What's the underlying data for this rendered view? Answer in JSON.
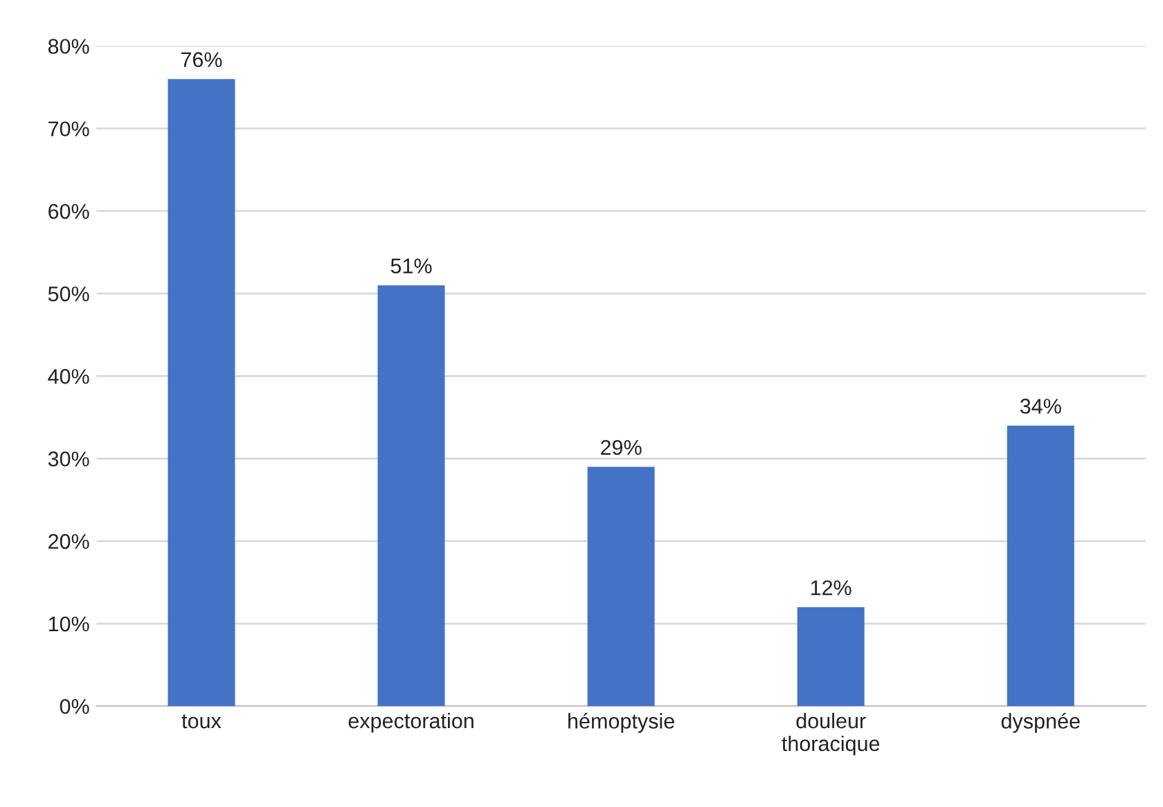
{
  "chart_data": {
    "type": "bar",
    "categories": [
      "toux",
      "expectoration",
      "hémoptysie",
      "douleur\nthoracique",
      "dyspnée"
    ],
    "values": [
      76,
      51,
      29,
      12,
      34
    ],
    "value_labels": [
      "76%",
      "51%",
      "29%",
      "12%",
      "34%"
    ],
    "color": "#4472c4",
    "ylim": [
      0,
      80
    ],
    "yticks": [
      {
        "value": 0,
        "label": "0%"
      },
      {
        "value": 10,
        "label": "10%"
      },
      {
        "value": 20,
        "label": "20%"
      },
      {
        "value": 30,
        "label": "30%"
      },
      {
        "value": 40,
        "label": "40%"
      },
      {
        "value": 50,
        "label": "50%"
      },
      {
        "value": 60,
        "label": "60%"
      },
      {
        "value": 70,
        "label": "70%"
      },
      {
        "value": 80,
        "label": "80%"
      }
    ],
    "grid": "y",
    "legend": false
  }
}
